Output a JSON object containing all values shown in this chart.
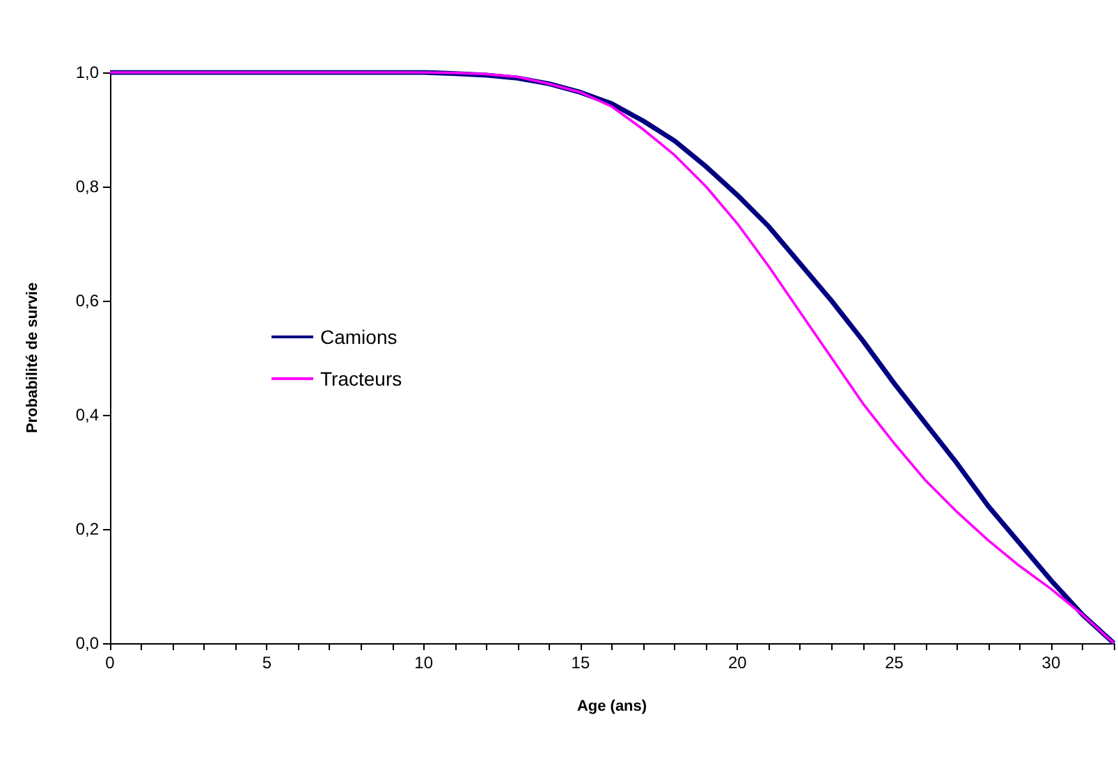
{
  "chart_data": {
    "type": "line",
    "xlabel": "Age (ans)",
    "ylabel": "Probabilité de survie",
    "x": [
      0,
      1,
      2,
      3,
      4,
      5,
      6,
      7,
      8,
      9,
      10,
      11,
      12,
      13,
      14,
      15,
      16,
      17,
      18,
      19,
      20,
      21,
      22,
      23,
      24,
      25,
      26,
      27,
      28,
      29,
      30,
      31,
      32
    ],
    "series": [
      {
        "name": "Camions",
        "color": "#000080",
        "values": [
          1,
          1,
          1,
          1,
          1,
          1,
          1,
          1,
          1,
          1,
          1,
          0.998,
          0.995,
          0.99,
          0.98,
          0.965,
          0.945,
          0.915,
          0.88,
          0.835,
          0.785,
          0.73,
          0.665,
          0.6,
          0.53,
          0.455,
          0.385,
          0.315,
          0.24,
          0.175,
          0.11,
          0.05,
          0
        ]
      },
      {
        "name": "Tracteurs",
        "color": "#ff00ff",
        "values": [
          1,
          1,
          1,
          1,
          1,
          1,
          1,
          1,
          1,
          1,
          1,
          0.999,
          0.997,
          0.992,
          0.98,
          0.965,
          0.94,
          0.9,
          0.855,
          0.8,
          0.735,
          0.66,
          0.58,
          0.5,
          0.42,
          0.35,
          0.285,
          0.23,
          0.18,
          0.135,
          0.095,
          0.05,
          0
        ]
      }
    ],
    "xlim": [
      0,
      32
    ],
    "xticks": [
      0,
      {
        "value": 1,
        "label": null
      },
      {
        "value": 2,
        "label": null
      },
      {
        "value": 3,
        "label": null
      },
      {
        "value": 4,
        "label": null
      },
      5,
      {
        "value": 6,
        "label": null
      },
      {
        "value": 7,
        "label": null
      },
      {
        "value": 8,
        "label": null
      },
      {
        "value": 9,
        "label": null
      },
      10,
      {
        "value": 11,
        "label": null
      },
      {
        "value": 12,
        "label": null
      },
      {
        "value": 13,
        "label": null
      },
      {
        "value": 14,
        "label": null
      },
      15,
      {
        "value": 16,
        "label": null
      },
      {
        "value": 17,
        "label": null
      },
      {
        "value": 18,
        "label": null
      },
      {
        "value": 19,
        "label": null
      },
      20,
      {
        "value": 21,
        "label": null
      },
      {
        "value": 22,
        "label": null
      },
      {
        "value": 23,
        "label": null
      },
      {
        "value": 24,
        "label": null
      },
      25,
      {
        "value": 26,
        "label": null
      },
      {
        "value": 27,
        "label": null
      },
      {
        "value": 28,
        "label": null
      },
      {
        "value": 29,
        "label": null
      },
      30,
      {
        "value": 31,
        "label": null
      },
      {
        "value": 32,
        "label": null
      }
    ],
    "ylim": [
      0,
      1
    ],
    "yticks": [
      {
        "value": 0,
        "label": "0,0"
      },
      {
        "value": 0.2,
        "label": "0,2"
      },
      {
        "value": 0.4,
        "label": "0,4"
      },
      {
        "value": 0.6,
        "label": "0,6"
      },
      {
        "value": 0.8,
        "label": "0,8"
      },
      {
        "value": 1,
        "label": "1,0"
      }
    ],
    "grid": false,
    "legend": "left",
    "marker": "none",
    "line_style": "solid"
  }
}
